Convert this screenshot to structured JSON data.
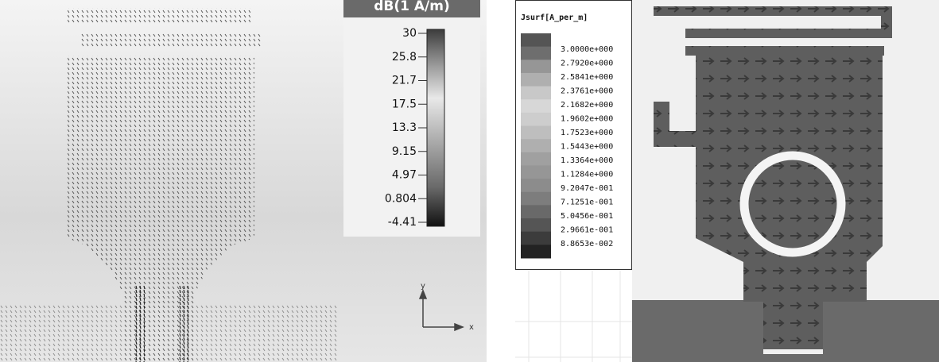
{
  "left_panel": {
    "colorbar_title": "dB(1 A/m)",
    "colorbar_labels": [
      "30",
      "25.8",
      "21.7",
      "17.5",
      "13.3",
      "9.15",
      "4.97",
      "0.804",
      "-4.41"
    ],
    "axis_labels": {
      "y": "y",
      "x": "x"
    }
  },
  "right_panel": {
    "legend_title": "Jsurf[A_per_m]",
    "legend_labels": [
      "3.0000e+000",
      "2.7920e+000",
      "2.5841e+000",
      "2.3761e+000",
      "2.1682e+000",
      "1.9602e+000",
      "1.7523e+000",
      "1.5443e+000",
      "1.3364e+000",
      "1.1284e+000",
      "9.2047e-001",
      "7.1251e-001",
      "5.0456e-001",
      "2.9661e-001",
      "8.8653e-002"
    ]
  }
}
